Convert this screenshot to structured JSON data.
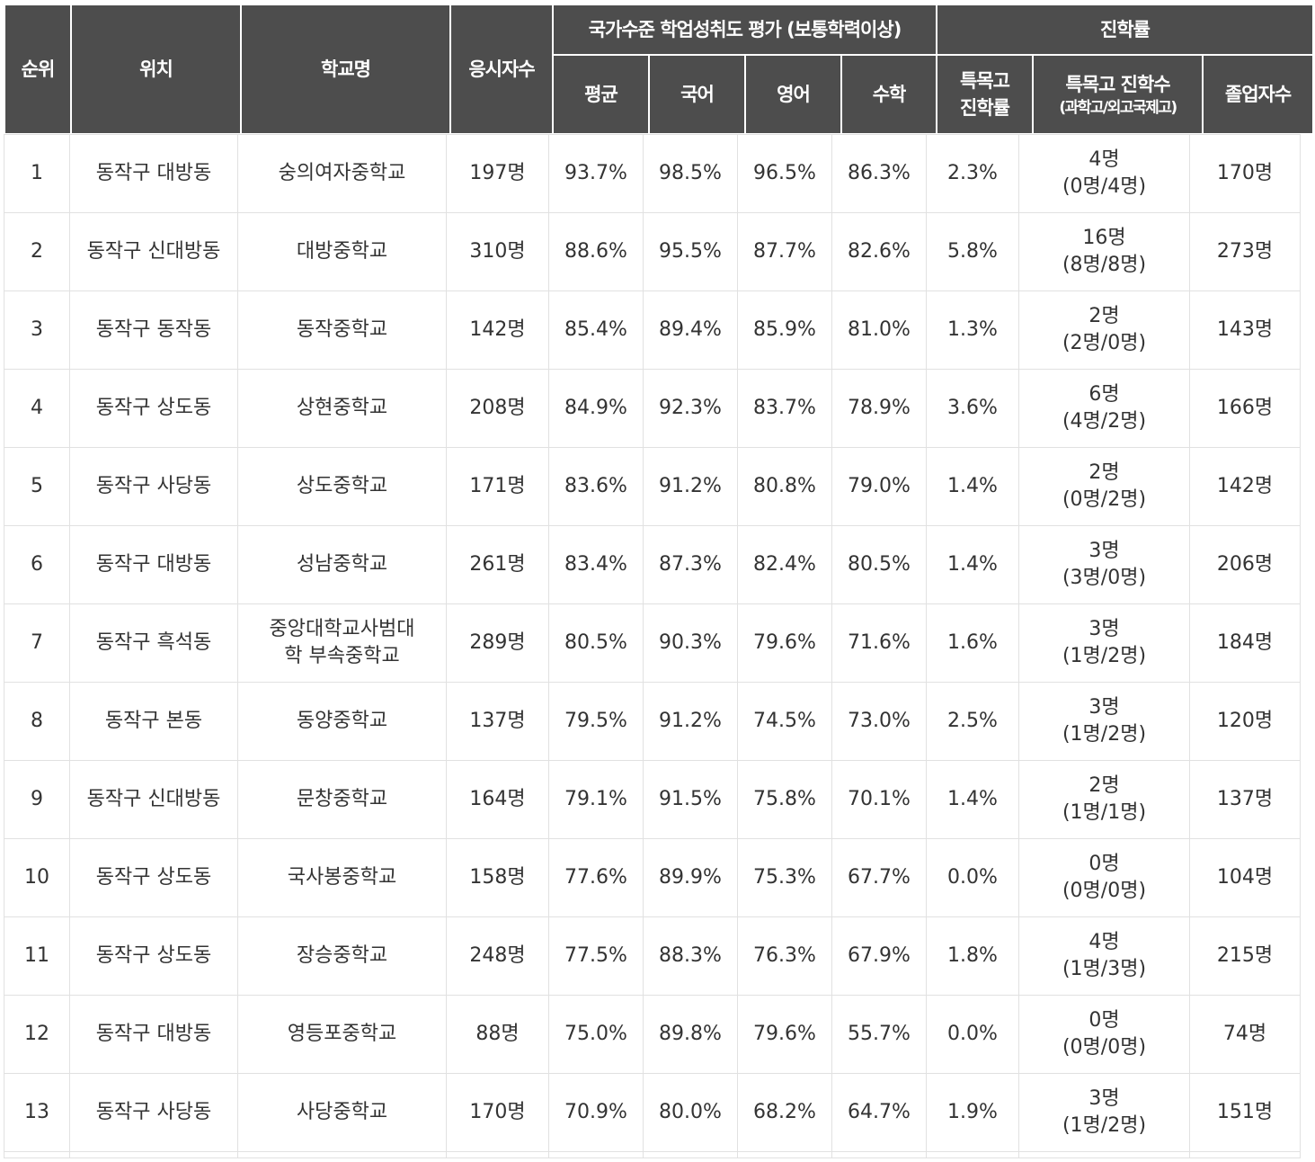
{
  "header": {
    "rank": "순위",
    "location": "위치",
    "school": "학교명",
    "examinees": "응시자수",
    "assessment": "국가수준 학업성취도 평가 (보통학력이상)",
    "average": "평균",
    "korean": "국어",
    "english": "영어",
    "math": "수학",
    "advancement": "진학률",
    "special_rate": "특목고 진학률",
    "special_count": "특목고 진학수",
    "special_count_sub": "(과학고/외고국제고)",
    "graduates": "졸업자수"
  },
  "rows": [
    {
      "rank": "1",
      "location": "동작구 대방동",
      "school": "숭의여자중학교",
      "examinees": "197명",
      "average": "93.7%",
      "korean": "98.5%",
      "english": "96.5%",
      "math": "86.3%",
      "special_rate": "2.3%",
      "special_count": "4명",
      "special_detail": "(0명/4명)",
      "graduates": "170명"
    },
    {
      "rank": "2",
      "location": "동작구 신대방동",
      "school": "대방중학교",
      "examinees": "310명",
      "average": "88.6%",
      "korean": "95.5%",
      "english": "87.7%",
      "math": "82.6%",
      "special_rate": "5.8%",
      "special_count": "16명",
      "special_detail": "(8명/8명)",
      "graduates": "273명"
    },
    {
      "rank": "3",
      "location": "동작구 동작동",
      "school": "동작중학교",
      "examinees": "142명",
      "average": "85.4%",
      "korean": "89.4%",
      "english": "85.9%",
      "math": "81.0%",
      "special_rate": "1.3%",
      "special_count": "2명",
      "special_detail": "(2명/0명)",
      "graduates": "143명"
    },
    {
      "rank": "4",
      "location": "동작구 상도동",
      "school": "상현중학교",
      "examinees": "208명",
      "average": "84.9%",
      "korean": "92.3%",
      "english": "83.7%",
      "math": "78.9%",
      "special_rate": "3.6%",
      "special_count": "6명",
      "special_detail": "(4명/2명)",
      "graduates": "166명"
    },
    {
      "rank": "5",
      "location": "동작구 사당동",
      "school": "상도중학교",
      "examinees": "171명",
      "average": "83.6%",
      "korean": "91.2%",
      "english": "80.8%",
      "math": "79.0%",
      "special_rate": "1.4%",
      "special_count": "2명",
      "special_detail": "(0명/2명)",
      "graduates": "142명"
    },
    {
      "rank": "6",
      "location": "동작구 대방동",
      "school": "성남중학교",
      "examinees": "261명",
      "average": "83.4%",
      "korean": "87.3%",
      "english": "82.4%",
      "math": "80.5%",
      "special_rate": "1.4%",
      "special_count": "3명",
      "special_detail": "(3명/0명)",
      "graduates": "206명"
    },
    {
      "rank": "7",
      "location": "동작구 흑석동",
      "school": "중앙대학교사범대학 부속중학교",
      "examinees": "289명",
      "average": "80.5%",
      "korean": "90.3%",
      "english": "79.6%",
      "math": "71.6%",
      "special_rate": "1.6%",
      "special_count": "3명",
      "special_detail": "(1명/2명)",
      "graduates": "184명"
    },
    {
      "rank": "8",
      "location": "동작구 본동",
      "school": "동양중학교",
      "examinees": "137명",
      "average": "79.5%",
      "korean": "91.2%",
      "english": "74.5%",
      "math": "73.0%",
      "special_rate": "2.5%",
      "special_count": "3명",
      "special_detail": "(1명/2명)",
      "graduates": "120명"
    },
    {
      "rank": "9",
      "location": "동작구 신대방동",
      "school": "문창중학교",
      "examinees": "164명",
      "average": "79.1%",
      "korean": "91.5%",
      "english": "75.8%",
      "math": "70.1%",
      "special_rate": "1.4%",
      "special_count": "2명",
      "special_detail": "(1명/1명)",
      "graduates": "137명"
    },
    {
      "rank": "10",
      "location": "동작구 상도동",
      "school": "국사봉중학교",
      "examinees": "158명",
      "average": "77.6%",
      "korean": "89.9%",
      "english": "75.3%",
      "math": "67.7%",
      "special_rate": "0.0%",
      "special_count": "0명",
      "special_detail": "(0명/0명)",
      "graduates": "104명"
    },
    {
      "rank": "11",
      "location": "동작구 상도동",
      "school": "장승중학교",
      "examinees": "248명",
      "average": "77.5%",
      "korean": "88.3%",
      "english": "76.3%",
      "math": "67.9%",
      "special_rate": "1.8%",
      "special_count": "4명",
      "special_detail": "(1명/3명)",
      "graduates": "215명"
    },
    {
      "rank": "12",
      "location": "동작구 대방동",
      "school": "영등포중학교",
      "examinees": "88명",
      "average": "75.0%",
      "korean": "89.8%",
      "english": "79.6%",
      "math": "55.7%",
      "special_rate": "0.0%",
      "special_count": "0명",
      "special_detail": "(0명/0명)",
      "graduates": "74명"
    },
    {
      "rank": "13",
      "location": "동작구 사당동",
      "school": "사당중학교",
      "examinees": "170명",
      "average": "70.9%",
      "korean": "80.0%",
      "english": "68.2%",
      "math": "64.7%",
      "special_rate": "1.9%",
      "special_count": "3명",
      "special_detail": "(1명/2명)",
      "graduates": "151명"
    }
  ]
}
